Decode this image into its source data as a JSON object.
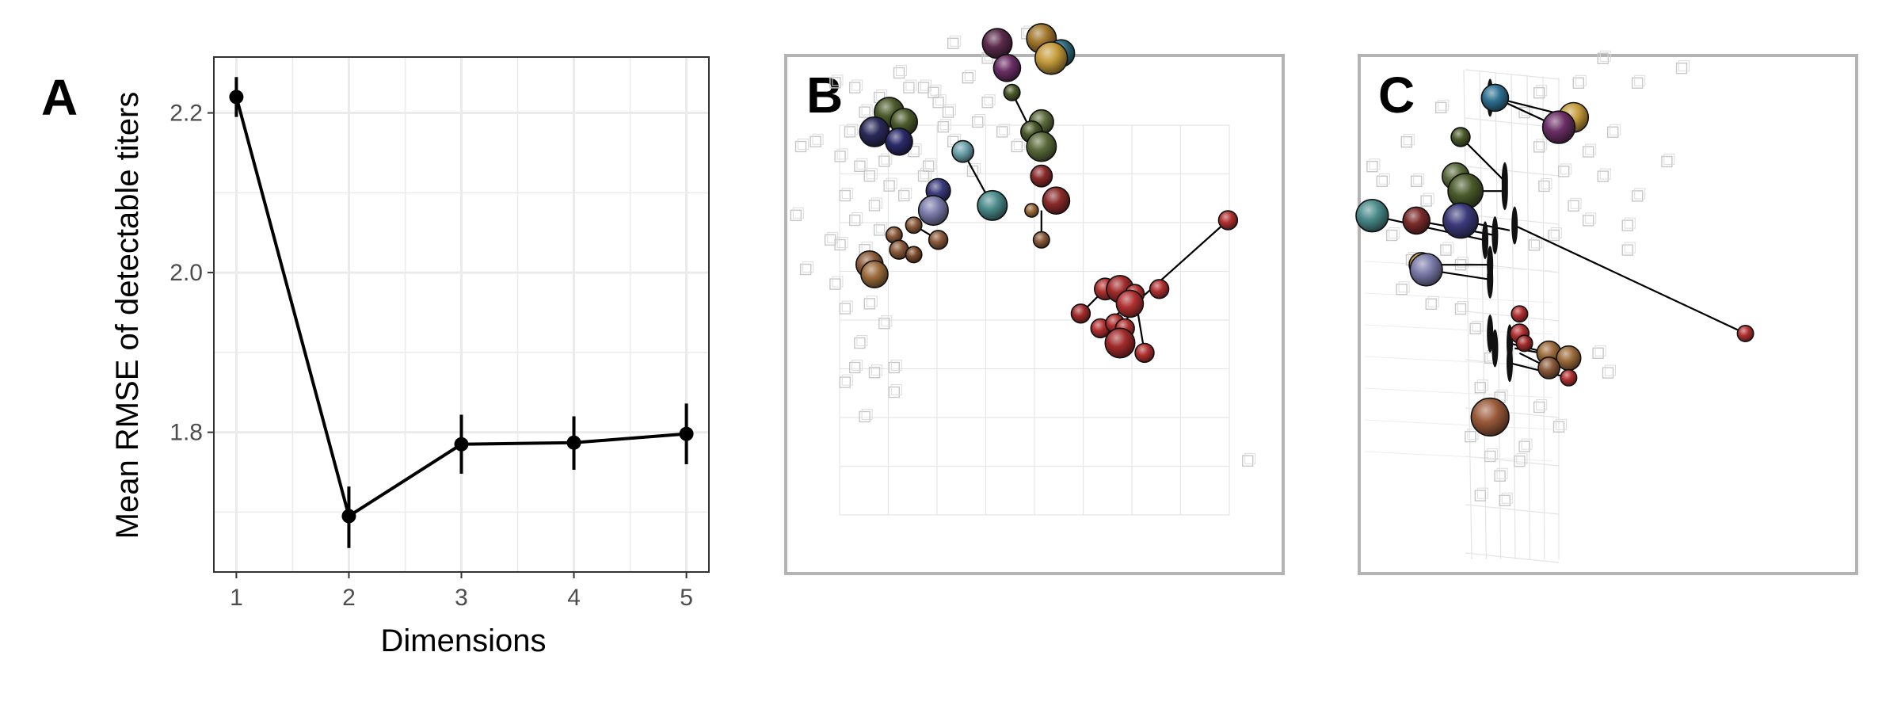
{
  "panels": {
    "a": {
      "letter": "A"
    },
    "b": {
      "letter": "B"
    },
    "c": {
      "letter": "C"
    }
  },
  "chart_data": [
    {
      "type": "line",
      "panel": "A",
      "title": "",
      "xlabel": "Dimensions",
      "ylabel": "Mean RMSE of detectable titers",
      "x": [
        1,
        2,
        3,
        4,
        5
      ],
      "y": [
        2.22,
        1.695,
        1.785,
        1.787,
        1.798
      ],
      "y_lower": [
        2.195,
        1.655,
        1.748,
        1.753,
        1.76
      ],
      "y_upper": [
        2.245,
        1.732,
        1.822,
        1.82,
        1.836
      ],
      "x_ticks": [
        "1",
        "2",
        "3",
        "4",
        "5"
      ],
      "y_ticks": [
        "1.8",
        "2.0",
        "2.2"
      ],
      "y_tick_values": [
        1.8,
        2.0,
        2.2
      ],
      "xlim": [
        0.8,
        5.2
      ],
      "ylim": [
        1.625,
        2.27
      ],
      "grid": true,
      "legend": "none"
    },
    {
      "type": "scatter",
      "panel": "B",
      "description_role": "2D antigenic map",
      "grid": true,
      "antigens": [
        {
          "x": 3.5,
          "y": 9.6,
          "c": "#5a2a4a",
          "s": 1.1
        },
        {
          "x": 4.4,
          "y": 9.7,
          "c": "#a0762c",
          "s": 1.1
        },
        {
          "x": 4.8,
          "y": 9.4,
          "c": "#2f6a7a",
          "s": 1.0
        },
        {
          "x": 4.6,
          "y": 9.3,
          "c": "#c49a3a",
          "s": 1.2
        },
        {
          "x": 3.7,
          "y": 9.1,
          "c": "#6a2f66",
          "s": 1.0
        },
        {
          "x": 3.8,
          "y": 8.6,
          "c": "#4a5a2a",
          "s": 0.6
        },
        {
          "x": 4.4,
          "y": 8.0,
          "c": "#5a6a3a",
          "s": 0.9
        },
        {
          "x": 4.2,
          "y": 7.8,
          "c": "#4a5a2a",
          "s": 0.8
        },
        {
          "x": 4.4,
          "y": 7.5,
          "c": "#5a6a3a",
          "s": 1.1
        },
        {
          "x": 1.3,
          "y": 8.2,
          "c": "#4a5a2a",
          "s": 1.1
        },
        {
          "x": 1.6,
          "y": 8.0,
          "c": "#4a5a2a",
          "s": 1.0
        },
        {
          "x": 1.0,
          "y": 7.8,
          "c": "#2a2a5a",
          "s": 1.1
        },
        {
          "x": 1.5,
          "y": 7.6,
          "c": "#2a2a6a",
          "s": 1.0
        },
        {
          "x": 2.8,
          "y": 7.4,
          "c": "#6aa0aa",
          "s": 0.8
        },
        {
          "x": 4.4,
          "y": 6.9,
          "c": "#8a2a2a",
          "s": 0.8
        },
        {
          "x": 2.3,
          "y": 6.6,
          "c": "#3a3a7a",
          "s": 0.9
        },
        {
          "x": 2.2,
          "y": 6.2,
          "c": "#7a7aaa",
          "s": 1.1
        },
        {
          "x": 3.4,
          "y": 6.3,
          "c": "#4a8a8a",
          "s": 1.1
        },
        {
          "x": 4.7,
          "y": 6.4,
          "c": "#8a2a2a",
          "s": 1.0
        },
        {
          "x": 4.2,
          "y": 6.2,
          "c": "#9a6a3a",
          "s": 0.5
        },
        {
          "x": 1.8,
          "y": 5.9,
          "c": "#8a5a3a",
          "s": 0.6
        },
        {
          "x": 1.4,
          "y": 5.7,
          "c": "#8a5a3a",
          "s": 0.6
        },
        {
          "x": 2.3,
          "y": 5.6,
          "c": "#8a5a3a",
          "s": 0.7
        },
        {
          "x": 1.5,
          "y": 5.4,
          "c": "#8a5a3a",
          "s": 0.7
        },
        {
          "x": 1.8,
          "y": 5.3,
          "c": "#7a4a2a",
          "s": 0.6
        },
        {
          "x": 0.9,
          "y": 5.1,
          "c": "#8a5a3a",
          "s": 1.0
        },
        {
          "x": 1.0,
          "y": 4.9,
          "c": "#9a6a3a",
          "s": 1.0
        },
        {
          "x": 4.4,
          "y": 5.6,
          "c": "#8a5a3a",
          "s": 0.6
        },
        {
          "x": 8.2,
          "y": 6.0,
          "c": "#b03030",
          "s": 0.7
        },
        {
          "x": 5.7,
          "y": 4.6,
          "c": "#b03030",
          "s": 0.8
        },
        {
          "x": 6.0,
          "y": 4.6,
          "c": "#a02a2a",
          "s": 1.0
        },
        {
          "x": 6.3,
          "y": 4.5,
          "c": "#b03030",
          "s": 0.7
        },
        {
          "x": 6.8,
          "y": 4.6,
          "c": "#b03030",
          "s": 0.7
        },
        {
          "x": 6.2,
          "y": 4.3,
          "c": "#b03030",
          "s": 1.0
        },
        {
          "x": 5.2,
          "y": 4.1,
          "c": "#a02a2a",
          "s": 0.7
        },
        {
          "x": 5.6,
          "y": 3.8,
          "c": "#b03030",
          "s": 0.7
        },
        {
          "x": 5.9,
          "y": 3.9,
          "c": "#b03030",
          "s": 0.7
        },
        {
          "x": 6.1,
          "y": 3.8,
          "c": "#b03030",
          "s": 0.7
        },
        {
          "x": 6.0,
          "y": 3.5,
          "c": "#a02a2a",
          "s": 1.1
        },
        {
          "x": 6.5,
          "y": 3.3,
          "c": "#b03030",
          "s": 0.7
        }
      ],
      "links": [
        [
          3.8,
          8.6,
          4.2,
          7.8
        ],
        [
          2.8,
          7.4,
          3.4,
          6.3
        ],
        [
          4.4,
          6.2,
          4.4,
          5.6
        ],
        [
          1.8,
          5.9,
          2.3,
          5.6
        ],
        [
          8.2,
          6.0,
          6.3,
          4.3
        ],
        [
          6.3,
          4.5,
          6.0,
          3.5
        ],
        [
          6.3,
          4.5,
          6.5,
          3.3
        ],
        [
          5.2,
          4.1,
          5.7,
          4.6
        ],
        [
          5.6,
          3.8,
          6.2,
          4.3
        ],
        [
          1.4,
          5.7,
          1.8,
          5.3
        ]
      ],
      "sera": [
        [
          2.6,
          9.6
        ],
        [
          4.1,
          9.8
        ],
        [
          4.4,
          9.5
        ],
        [
          1.5,
          9.0
        ],
        [
          2.0,
          8.7
        ],
        [
          2.3,
          8.4
        ],
        [
          0.8,
          8.2
        ],
        [
          1.1,
          8.5
        ],
        [
          2.5,
          8.2
        ],
        [
          3.1,
          8.0
        ],
        [
          0.5,
          7.8
        ],
        [
          0.3,
          7.3
        ],
        [
          0.7,
          7.1
        ],
        [
          1.2,
          7.2
        ],
        [
          1.8,
          7.4
        ],
        [
          2.1,
          7.1
        ],
        [
          2.6,
          7.6
        ],
        [
          3.0,
          7.0
        ],
        [
          0.9,
          6.9
        ],
        [
          1.3,
          6.7
        ],
        [
          0.4,
          6.5
        ],
        [
          1.0,
          6.3
        ],
        [
          1.6,
          6.5
        ],
        [
          2.0,
          6.9
        ],
        [
          0.6,
          6.0
        ],
        [
          1.1,
          5.8
        ],
        [
          0.3,
          5.5
        ],
        [
          0.8,
          5.4
        ],
        [
          0.4,
          4.2
        ],
        [
          0.9,
          4.3
        ],
        [
          1.2,
          3.9
        ],
        [
          0.7,
          3.5
        ],
        [
          0.6,
          3.0
        ],
        [
          1.0,
          2.9
        ],
        [
          1.4,
          2.5
        ],
        [
          0.4,
          2.7
        ],
        [
          1.4,
          3.0
        ],
        [
          0.8,
          2.0
        ],
        [
          8.6,
          1.1
        ],
        [
          -0.5,
          7.5
        ],
        [
          -0.2,
          7.6
        ],
        [
          -0.6,
          6.1
        ],
        [
          -0.4,
          5.0
        ],
        [
          0.1,
          5.6
        ],
        [
          0.2,
          8.8
        ],
        [
          2.2,
          8.6
        ],
        [
          3.3,
          8.4
        ],
        [
          3.6,
          7.8
        ],
        [
          3.9,
          7.5
        ],
        [
          2.4,
          7.9
        ],
        [
          2.9,
          8.9
        ],
        [
          1.7,
          8.7
        ],
        [
          3.3,
          9.3
        ],
        [
          0.6,
          8.7
        ],
        [
          0.2,
          4.7
        ]
      ]
    },
    {
      "type": "scatter",
      "panel": "C",
      "description_role": "3D antigenic map",
      "grid": true,
      "antigens": [
        {
          "x": 2.7,
          "y": 9.3,
          "c": "#2f7090",
          "s": 1.0
        },
        {
          "x": 4.3,
          "y": 8.9,
          "c": "#c49a3a",
          "s": 1.1
        },
        {
          "x": 4.0,
          "y": 8.7,
          "c": "#6a2f66",
          "s": 1.2
        },
        {
          "x": 2.0,
          "y": 8.5,
          "c": "#4a5a2a",
          "s": 0.7
        },
        {
          "x": 1.9,
          "y": 7.7,
          "c": "#5a6a3a",
          "s": 1.0
        },
        {
          "x": 2.1,
          "y": 7.4,
          "c": "#4a5a2a",
          "s": 1.3
        },
        {
          "x": 0.2,
          "y": 6.9,
          "c": "#4a8a8a",
          "s": 1.2
        },
        {
          "x": 1.1,
          "y": 6.8,
          "c": "#7a2a2a",
          "s": 1.0
        },
        {
          "x": 2.0,
          "y": 6.8,
          "c": "#3a3a7a",
          "s": 1.3
        },
        {
          "x": 1.2,
          "y": 5.9,
          "c": "#c49a3a",
          "s": 0.9
        },
        {
          "x": 1.3,
          "y": 5.8,
          "c": "#7a7aaa",
          "s": 1.2
        },
        {
          "x": 3.2,
          "y": 4.9,
          "c": "#b03030",
          "s": 0.6
        },
        {
          "x": 3.2,
          "y": 4.5,
          "c": "#b03030",
          "s": 0.7
        },
        {
          "x": 3.3,
          "y": 4.3,
          "c": "#a02a2a",
          "s": 0.6
        },
        {
          "x": 3.8,
          "y": 4.1,
          "c": "#9a6a3a",
          "s": 0.9
        },
        {
          "x": 4.2,
          "y": 4.0,
          "c": "#9a6a3a",
          "s": 0.9
        },
        {
          "x": 3.8,
          "y": 3.8,
          "c": "#8a5a3a",
          "s": 0.8
        },
        {
          "x": 4.2,
          "y": 3.6,
          "c": "#b03030",
          "s": 0.6
        },
        {
          "x": 2.6,
          "y": 2.8,
          "c": "#9a5a3a",
          "s": 1.4
        },
        {
          "x": 7.8,
          "y": 4.5,
          "c": "#b03030",
          "s": 0.6
        }
      ],
      "links": [
        [
          2.7,
          9.3,
          4.3,
          8.9
        ],
        [
          2.7,
          9.3,
          4.0,
          8.7
        ],
        [
          2.0,
          8.5,
          2.9,
          7.6
        ],
        [
          2.1,
          7.4,
          2.9,
          7.4
        ],
        [
          0.2,
          6.9,
          2.5,
          6.4
        ],
        [
          1.1,
          6.8,
          2.7,
          6.5
        ],
        [
          2.0,
          6.8,
          3.0,
          6.6
        ],
        [
          1.3,
          5.8,
          2.6,
          5.6
        ],
        [
          1.2,
          5.9,
          2.6,
          5.9
        ],
        [
          3.1,
          6.7,
          7.8,
          4.5
        ],
        [
          3.8,
          4.1,
          3.0,
          4.3
        ],
        [
          4.2,
          3.6,
          3.0,
          3.9
        ],
        [
          3.8,
          3.8,
          3.2,
          4.1
        ],
        [
          4.2,
          4.0,
          3.1,
          4.2
        ]
      ],
      "discs": [
        [
          2.6,
          9.3
        ],
        [
          2.9,
          7.6
        ],
        [
          2.9,
          7.4
        ],
        [
          3.1,
          6.7
        ],
        [
          2.5,
          6.4
        ],
        [
          2.7,
          6.5
        ],
        [
          2.6,
          5.6
        ],
        [
          2.6,
          5.9
        ],
        [
          3.0,
          4.3
        ],
        [
          3.0,
          3.9
        ],
        [
          2.6,
          4.5
        ],
        [
          2.7,
          4.2
        ],
        [
          2.5,
          2.8
        ]
      ],
      "sera": [
        [
          4.9,
          10.1
        ],
        [
          5.6,
          9.6
        ],
        [
          6.5,
          9.9
        ],
        [
          4.4,
          9.6
        ],
        [
          3.6,
          9.4
        ],
        [
          1.6,
          9.1
        ],
        [
          3.3,
          9.0
        ],
        [
          5.1,
          8.6
        ],
        [
          6.2,
          8.0
        ],
        [
          4.6,
          8.2
        ],
        [
          4.1,
          7.8
        ],
        [
          3.7,
          7.5
        ],
        [
          4.9,
          7.7
        ],
        [
          5.6,
          7.3
        ],
        [
          3.6,
          8.3
        ],
        [
          4.3,
          7.1
        ],
        [
          3.9,
          6.5
        ],
        [
          3.5,
          6.3
        ],
        [
          4.6,
          6.8
        ],
        [
          5.4,
          6.2
        ],
        [
          0.2,
          7.9
        ],
        [
          0.4,
          7.6
        ],
        [
          1.1,
          7.6
        ],
        [
          1.3,
          7.2
        ],
        [
          0.6,
          6.5
        ],
        [
          1.0,
          6.0
        ],
        [
          1.7,
          6.2
        ],
        [
          2.0,
          5.9
        ],
        [
          0.8,
          5.4
        ],
        [
          1.4,
          5.1
        ],
        [
          2.0,
          5.0
        ],
        [
          2.3,
          4.6
        ],
        [
          2.6,
          4.0
        ],
        [
          2.4,
          3.4
        ],
        [
          2.8,
          3.2
        ],
        [
          2.2,
          2.4
        ],
        [
          2.6,
          2.0
        ],
        [
          3.2,
          1.9
        ],
        [
          2.8,
          1.6
        ],
        [
          3.6,
          3.0
        ],
        [
          4.0,
          2.6
        ],
        [
          4.8,
          4.1
        ],
        [
          5.0,
          3.7
        ],
        [
          3.3,
          2.2
        ],
        [
          2.4,
          1.2
        ],
        [
          2.9,
          1.1
        ],
        [
          0.9,
          8.4
        ],
        [
          5.4,
          6.7
        ]
      ]
    }
  ]
}
